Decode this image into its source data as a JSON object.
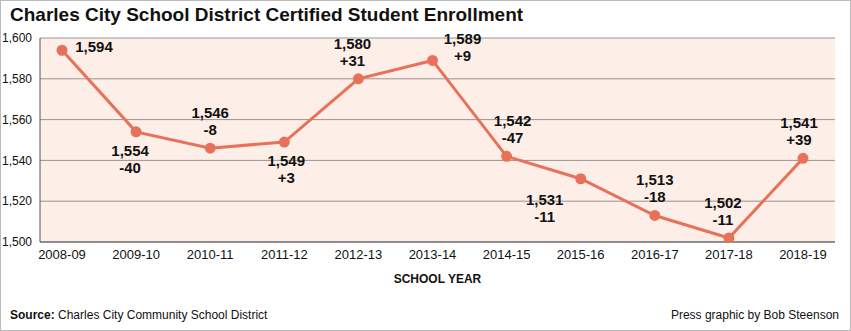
{
  "chart_data": {
    "type": "line",
    "title": "Charles City School District Certified Student Enrollment",
    "x_label": "SCHOOL YEAR",
    "categories": [
      "2008-09",
      "2009-10",
      "2010-11",
      "2011-12",
      "2012-13",
      "2013-14",
      "2014-15",
      "2015-16",
      "2016-17",
      "2017-18",
      "2018-19"
    ],
    "values": [
      1594,
      1554,
      1546,
      1549,
      1580,
      1589,
      1542,
      1531,
      1513,
      1502,
      1541
    ],
    "value_labels": [
      "1,594",
      "1,554",
      "1,546",
      "1,549",
      "1,580",
      "1,589",
      "1,542",
      "1,531",
      "1,513",
      "1,502",
      "1,541"
    ],
    "changes": [
      null,
      -40,
      -8,
      3,
      31,
      9,
      -47,
      -11,
      -18,
      -11,
      39
    ],
    "change_labels": [
      null,
      "-40",
      "-8",
      "+3",
      "+31",
      "+9",
      "-47",
      "-11",
      "-18",
      "-11",
      "+39"
    ],
    "color": "#e8715a",
    "marker": "circle",
    "data_labels": true,
    "grid": true,
    "ylim": [
      1500,
      1600
    ],
    "yticks": [
      {
        "value": 1500,
        "label": "1,500"
      },
      {
        "value": 1520,
        "label": "1,520"
      },
      {
        "value": 1540,
        "label": "1,540"
      },
      {
        "value": 1560,
        "label": "1,560"
      },
      {
        "value": 1580,
        "label": "1,580"
      },
      {
        "value": 1600,
        "label": "1,600"
      }
    ],
    "source_label": "Source:",
    "source": "Charles City Community School District",
    "credit": "Press graphic by Bob Steenson"
  }
}
